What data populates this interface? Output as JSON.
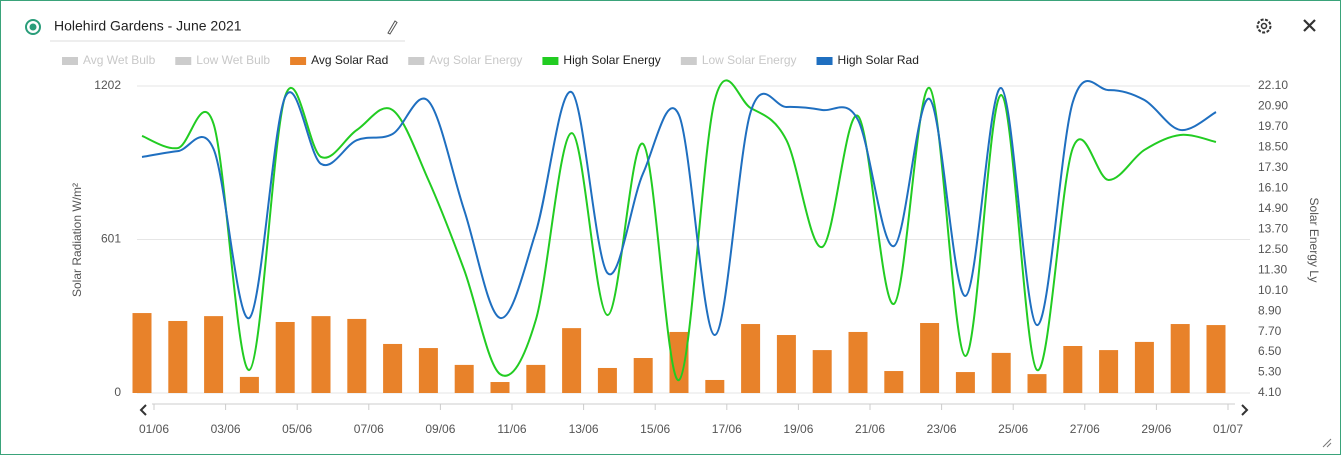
{
  "header": {
    "title": "Holehird Gardens - June 2021"
  },
  "chart_data": {
    "type": "bar-line",
    "categories": [
      "01/06",
      null,
      "03/06",
      null,
      "05/06",
      null,
      "07/06",
      null,
      "09/06",
      null,
      "11/06",
      null,
      "13/06",
      null,
      "15/06",
      null,
      "17/06",
      null,
      "19/06",
      null,
      "21/06",
      null,
      "23/06",
      null,
      "25/06",
      null,
      "27/06",
      null,
      "29/06",
      null,
      "01/07"
    ],
    "ylabel": "Solar Radiation W/m²",
    "y2label": "Solar Energy Ly",
    "ylim": [
      0,
      1202
    ],
    "yticks": [
      0,
      601,
      1202
    ],
    "y2lim": [
      4.1,
      22.1
    ],
    "y2ticks": [
      {
        "value": 4.1,
        "label": "4.10"
      },
      {
        "value": 5.3,
        "label": "5.30"
      },
      {
        "value": 6.5,
        "label": "6.50"
      },
      {
        "value": 7.7,
        "label": "7.70"
      },
      {
        "value": 8.9,
        "label": "8.90"
      },
      {
        "value": 10.1,
        "label": "10.10"
      },
      {
        "value": 11.3,
        "label": "11.30"
      },
      {
        "value": 12.5,
        "label": "12.50"
      },
      {
        "value": 13.7,
        "label": "13.70"
      },
      {
        "value": 14.9,
        "label": "14.90"
      },
      {
        "value": 16.1,
        "label": "16.10"
      },
      {
        "value": 17.3,
        "label": "17.30"
      },
      {
        "value": 18.5,
        "label": "18.50"
      },
      {
        "value": 19.7,
        "label": "19.70"
      },
      {
        "value": 20.9,
        "label": "20.90"
      },
      {
        "value": 22.1,
        "label": "22.10"
      }
    ],
    "grid": true,
    "series": [
      {
        "name": "Avg Wet Bulb",
        "color": "#cccccc",
        "visible": false
      },
      {
        "name": "Low Wet Bulb",
        "color": "#cccccc",
        "visible": false
      },
      {
        "name": "Avg Solar Rad",
        "color": "#e8822a",
        "kind": "bar",
        "axis": "y",
        "values": [
          313,
          282,
          301,
          63,
          278,
          301,
          290,
          192,
          176,
          110,
          43,
          110,
          254,
          98,
          137,
          239,
          51,
          270,
          227,
          168,
          239,
          86,
          274,
          82,
          157,
          74,
          184,
          168,
          200,
          270,
          266
        ]
      },
      {
        "name": "Avg Solar Energy",
        "color": "#cccccc",
        "visible": false
      },
      {
        "name": "High Solar Energy",
        "color": "#22cc22",
        "kind": "line",
        "axis": "y2",
        "values": [
          19.17,
          18.46,
          19.87,
          5.45,
          21.51,
          17.94,
          19.52,
          20.69,
          16.59,
          11.31,
          5.21,
          8.38,
          19.34,
          8.67,
          18.7,
          4.86,
          21.28,
          20.81,
          18.93,
          12.66,
          20.34,
          9.32,
          21.98,
          6.27,
          21.57,
          5.45,
          18.46,
          16.59,
          18.35,
          19.23,
          18.82
        ]
      },
      {
        "name": "Low Solar Energy",
        "color": "#cccccc",
        "visible": false
      },
      {
        "name": "High Solar Rad",
        "color": "#1f6fc0",
        "kind": "line",
        "axis": "y",
        "values": [
          924,
          947,
          955,
          294,
          1159,
          897,
          990,
          1014,
          1143,
          716,
          294,
          630,
          1178,
          470,
          861,
          1088,
          227,
          1100,
          1120,
          1108,
          1069,
          575,
          1151,
          380,
          1194,
          266,
          1139,
          1186,
          1147,
          1030,
          1100
        ]
      }
    ]
  }
}
